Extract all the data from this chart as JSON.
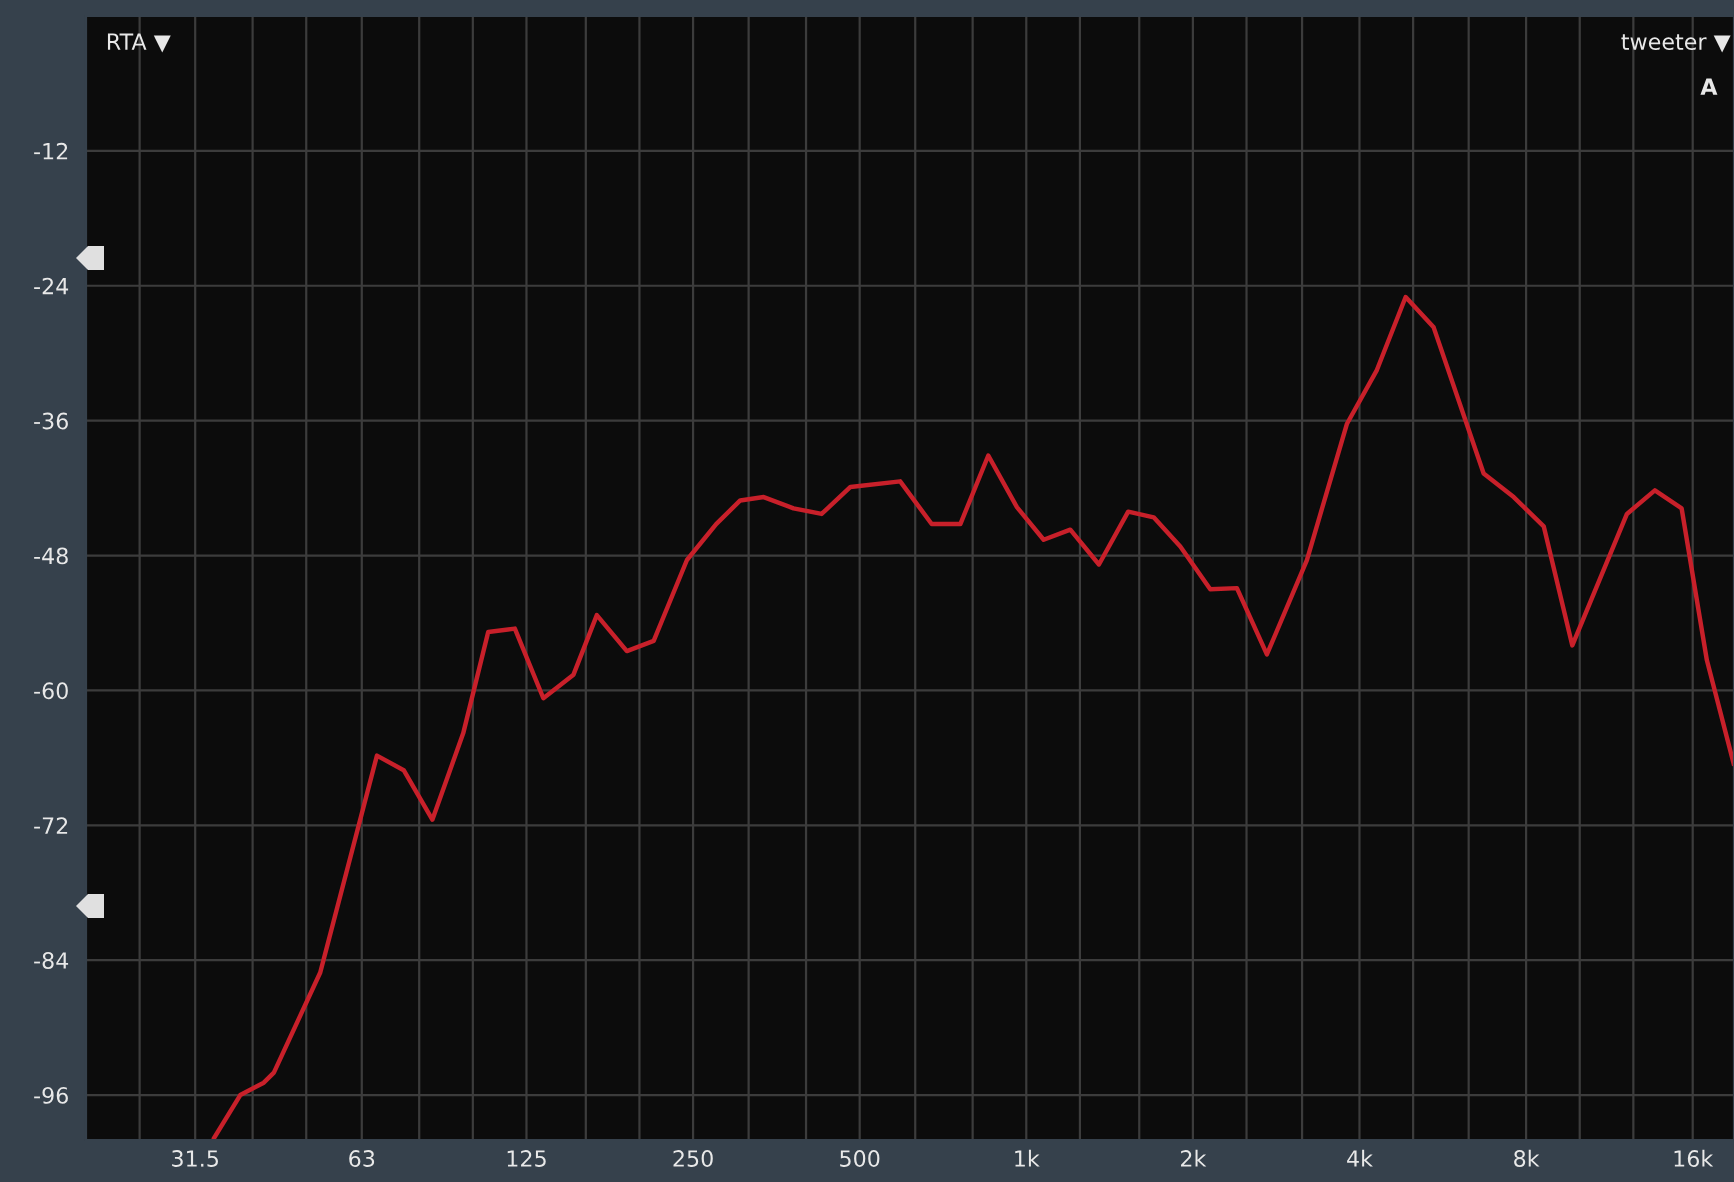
{
  "chart_data": {
    "type": "line",
    "annotations": [
      "RTA ▼",
      "tweeter ▼",
      "A"
    ],
    "x": [
      34.1,
      38.0,
      41.9,
      43.7,
      53.0,
      67.1,
      75.0,
      84.5,
      96.1,
      106.6,
      119.1,
      134.1,
      152.0,
      167.5,
      189.8,
      212.2,
      243.7,
      275.2,
      304.2,
      335.4,
      379.7,
      426.8,
      481.2,
      591.8,
      674.6,
      760.1,
      853.8,
      961.8,
      1075,
      1201,
      1353,
      1528,
      1699,
      1898,
      2150,
      2402,
      2721,
      3214,
      3795,
      4300,
      4847,
      5446,
      6705,
      7598,
      8609,
      9696,
      12170,
      13670,
      15280,
      16970,
      18970
    ],
    "series": [
      {
        "color": "#c8202a",
        "values": [
          -99.8,
          -96.0,
          -94.9,
          -94.0,
          -85.1,
          -65.8,
          -67.1,
          -71.5,
          -63.8,
          -54.8,
          -54.5,
          -60.7,
          -58.6,
          -53.3,
          -56.5,
          -55.6,
          -48.4,
          -45.2,
          -43.1,
          -42.8,
          -43.8,
          -44.3,
          -41.9,
          -41.4,
          -45.2,
          -45.2,
          -39.1,
          -43.7,
          -46.6,
          -45.7,
          -48.8,
          -44.1,
          -44.6,
          -47.2,
          -51.0,
          -50.9,
          -56.8,
          -48.4,
          -36.3,
          -31.5,
          -25.0,
          -27.7,
          -40.7,
          -42.8,
          -45.4,
          -56.0,
          -44.3,
          -42.2,
          -43.8,
          -57.3,
          -66.5
        ]
      }
    ],
    "log": "x",
    "xlim": [
      20,
      19000
    ],
    "ylim": [
      -100,
      0
    ],
    "yticks": [
      -12,
      -24,
      -36,
      -48,
      -60,
      -72,
      -84,
      -96
    ],
    "xticks": [
      {
        "value": 25,
        "label": null
      },
      31.5,
      {
        "value": 40,
        "label": null
      },
      {
        "value": 50,
        "label": null
      },
      63,
      {
        "value": 80,
        "label": null
      },
      {
        "value": 100,
        "label": null
      },
      125,
      {
        "value": 160,
        "label": null
      },
      {
        "value": 200,
        "label": null
      },
      250,
      {
        "value": 315,
        "label": null
      },
      {
        "value": 400,
        "label": null
      },
      500,
      {
        "value": 630,
        "label": null
      },
      {
        "value": 800,
        "label": null
      },
      {
        "value": 1000,
        "label": "1k"
      },
      {
        "value": 1250,
        "label": null
      },
      {
        "value": 1600,
        "label": null
      },
      {
        "value": 2000,
        "label": "2k"
      },
      {
        "value": 2500,
        "label": null
      },
      {
        "value": 3150,
        "label": null
      },
      {
        "value": 4000,
        "label": "4k"
      },
      {
        "value": 5000,
        "label": null
      },
      {
        "value": 6300,
        "label": null
      },
      {
        "value": 8000,
        "label": "8k"
      },
      {
        "value": 10000,
        "label": null
      },
      {
        "value": 12500,
        "label": null
      },
      {
        "value": 16000,
        "label": "16k"
      }
    ],
    "grid": true,
    "marker": "none",
    "line_style": "solid",
    "legend": false
  }
}
